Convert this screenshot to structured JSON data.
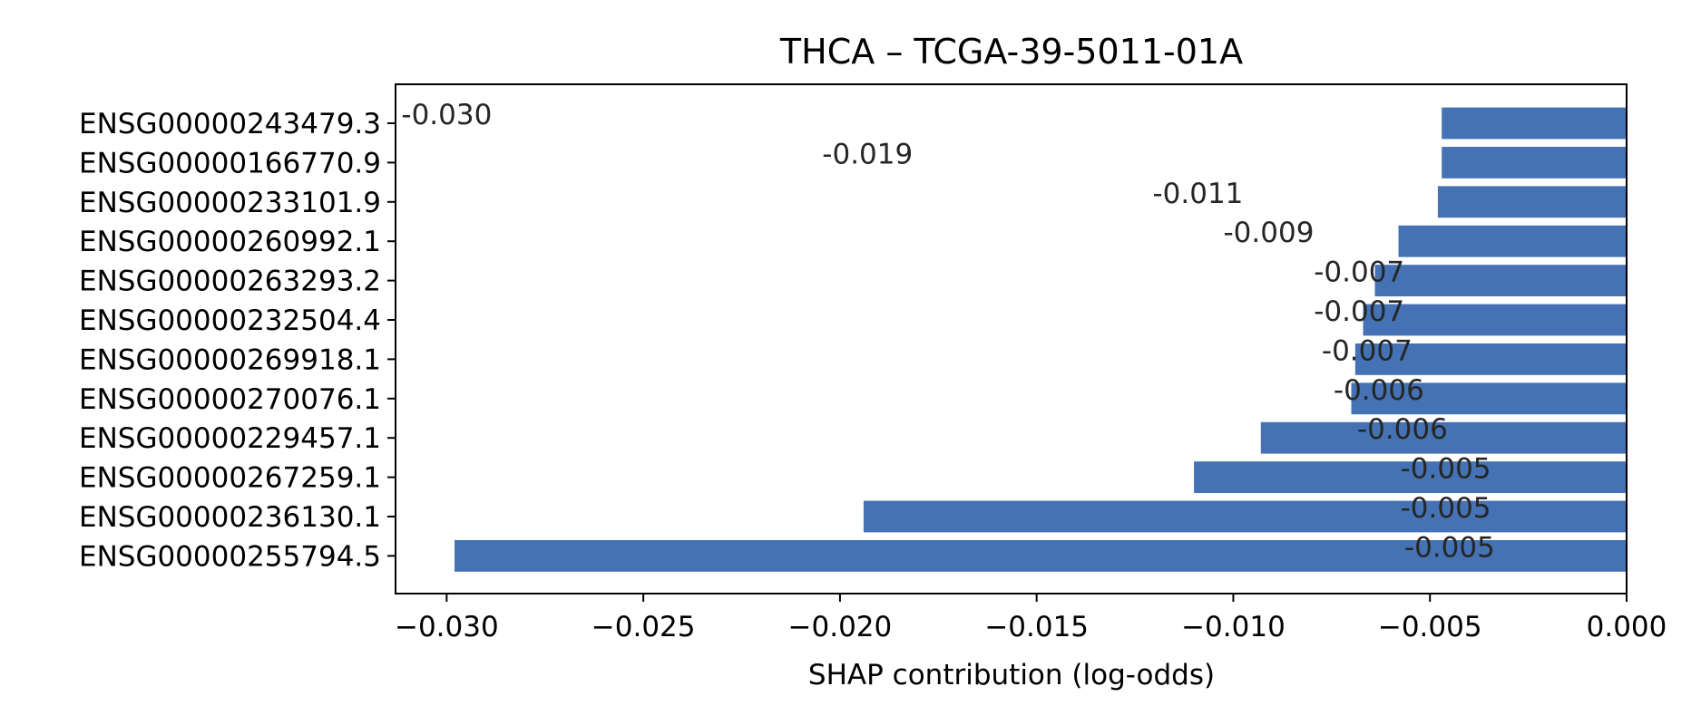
{
  "chart_data": {
    "type": "bar",
    "orientation": "horizontal",
    "title": "THCA – TCGA-39-5011-01A",
    "xlabel": "SHAP contribution (log-odds)",
    "ylabel": "",
    "xlim": [
      -0.0313,
      0.0
    ],
    "x_ticks": [
      -0.03,
      -0.025,
      -0.02,
      -0.015,
      -0.01,
      -0.005,
      0.0
    ],
    "x_tick_labels": [
      "−0.030",
      "−0.025",
      "−0.020",
      "−0.015",
      "−0.010",
      "−0.005",
      "0.000"
    ],
    "grid": false,
    "legend": "none",
    "bar_color": "#4472b4",
    "categories": [
      "ENSG00000243479.3",
      "ENSG00000166770.9",
      "ENSG00000233101.9",
      "ENSG00000260992.1",
      "ENSG00000263293.2",
      "ENSG00000232504.4",
      "ENSG00000269918.1",
      "ENSG00000270076.1",
      "ENSG00000229457.1",
      "ENSG00000267259.1",
      "ENSG00000236130.1",
      "ENSG00000255794.5"
    ],
    "values": [
      -0.0047,
      -0.0047,
      -0.0048,
      -0.0058,
      -0.0064,
      -0.0067,
      -0.0069,
      -0.007,
      -0.0093,
      -0.011,
      -0.0194,
      -0.0298
    ],
    "data_labels": [
      "-0.030",
      "-0.019",
      "-0.011",
      "-0.009",
      "-0.007",
      "-0.007",
      "-0.007",
      "-0.006",
      "-0.006",
      "-0.005",
      "-0.005",
      "-0.005"
    ],
    "data_label_x": [
      -0.03,
      -0.0193,
      -0.0109,
      -0.0091,
      -0.0068,
      -0.0068,
      -0.0066,
      -0.0063,
      -0.0057,
      -0.0046,
      -0.0046,
      -0.0045
    ]
  }
}
